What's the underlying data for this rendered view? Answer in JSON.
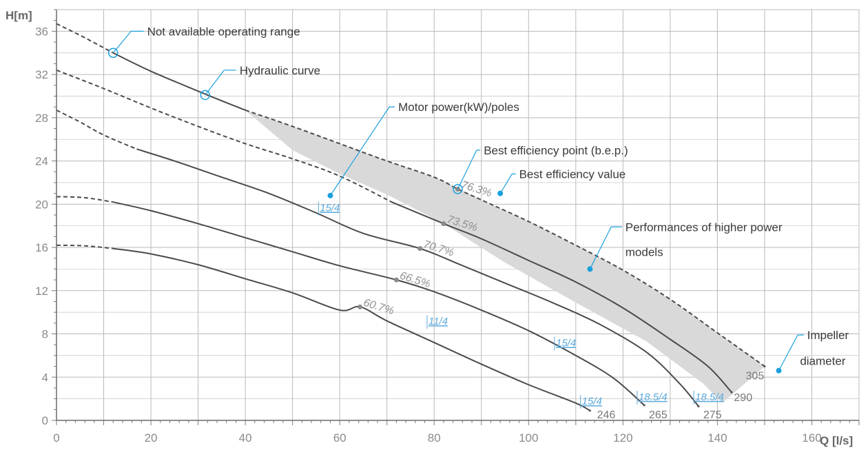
{
  "chart_data": {
    "type": "line",
    "xlabel": "Q [l/s]",
    "ylabel": "H[m]",
    "xlim": [
      0,
      170
    ],
    "ylim": [
      0,
      38
    ],
    "x_ticks": [
      0,
      20,
      40,
      60,
      80,
      100,
      120,
      140,
      160
    ],
    "y_ticks": [
      0,
      4,
      8,
      12,
      16,
      20,
      24,
      28,
      32,
      36
    ],
    "grid": true,
    "series": [
      {
        "name": "246",
        "solid_from_x": 12,
        "points": [
          [
            0,
            16.2
          ],
          [
            6,
            16.15
          ],
          [
            12,
            15.9
          ],
          [
            20,
            15.4
          ],
          [
            30,
            14.4
          ],
          [
            40,
            13.1
          ],
          [
            50,
            11.8
          ],
          [
            60,
            10.2
          ],
          [
            64.3,
            10.5
          ],
          [
            70,
            9.2
          ],
          [
            80,
            7.2
          ],
          [
            90,
            5.2
          ],
          [
            100,
            3.3
          ],
          [
            110,
            1.6
          ],
          [
            113,
            0.9
          ]
        ],
        "efficiency_point": {
          "x": 64.3,
          "y": 10.5,
          "label": "60.7%"
        },
        "motor_label": {
          "x": 111,
          "y": 1.2,
          "text": "15/4"
        },
        "motor_label_2": {
          "x": 78.5,
          "y": 8.6,
          "text": "11/4"
        }
      },
      {
        "name": "265",
        "solid_from_x": 12,
        "points": [
          [
            0,
            20.7
          ],
          [
            6,
            20.6
          ],
          [
            12,
            20.2
          ],
          [
            20,
            19.4
          ],
          [
            30,
            18.2
          ],
          [
            40,
            16.9
          ],
          [
            50,
            15.6
          ],
          [
            60,
            14.3
          ],
          [
            72,
            13.0
          ],
          [
            80,
            11.9
          ],
          [
            90,
            10.2
          ],
          [
            100,
            8.3
          ],
          [
            110,
            6.0
          ],
          [
            118,
            3.9
          ],
          [
            124.5,
            1.4
          ]
        ],
        "efficiency_point": {
          "x": 72,
          "y": 13.0,
          "label": "66.5%"
        },
        "motor_label": {
          "x": 123,
          "y": 1.6,
          "text": "18.5/4"
        },
        "motor_label_2": {
          "x": 105.5,
          "y": 6.6,
          "text": "15/4"
        }
      },
      {
        "name": "275",
        "solid_from_x": 17,
        "points": [
          [
            0,
            28.7
          ],
          [
            5,
            27.6
          ],
          [
            10,
            26.4
          ],
          [
            17,
            25.1
          ],
          [
            25,
            24.0
          ],
          [
            35,
            22.5
          ],
          [
            45,
            21.0
          ],
          [
            55,
            19.2
          ],
          [
            65,
            17.3
          ],
          [
            77,
            15.9
          ],
          [
            85,
            14.5
          ],
          [
            95,
            12.7
          ],
          [
            105,
            10.9
          ],
          [
            115,
            8.9
          ],
          [
            125,
            6.3
          ],
          [
            132,
            3.4
          ],
          [
            136,
            1.3
          ]
        ],
        "efficiency_point": {
          "x": 77,
          "y": 15.9,
          "label": "70.7%"
        },
        "motor_label": {
          "x": 135,
          "y": 1.6,
          "text": "18.5/4"
        },
        "motor_label_2": {
          "x": 55.5,
          "y": 19.1,
          "text": "15/4"
        }
      },
      {
        "name": "290",
        "solid_from_x": 71,
        "points": [
          [
            0,
            32.4
          ],
          [
            10,
            30.7
          ],
          [
            20,
            28.9
          ],
          [
            30,
            27.2
          ],
          [
            40,
            25.6
          ],
          [
            50,
            24.2
          ],
          [
            60,
            22.6
          ],
          [
            71,
            20.2
          ],
          [
            82,
            18.2
          ],
          [
            90,
            16.8
          ],
          [
            100,
            14.8
          ],
          [
            110,
            12.8
          ],
          [
            120,
            10.4
          ],
          [
            130,
            7.5
          ],
          [
            138,
            5.0
          ],
          [
            143,
            2.6
          ]
        ],
        "efficiency_point": {
          "x": 82,
          "y": 18.2,
          "label": "73.5%"
        }
      },
      {
        "name": "305",
        "solid_from_x": 12,
        "solid_to_x": 40,
        "points": [
          [
            0,
            36.7
          ],
          [
            6,
            35.4
          ],
          [
            12,
            34.0
          ],
          [
            20,
            32.3
          ],
          [
            32,
            30.1
          ],
          [
            40,
            28.7
          ],
          [
            50,
            27.2
          ],
          [
            60,
            25.6
          ],
          [
            70,
            24.0
          ],
          [
            80,
            22.5
          ],
          [
            85,
            21.4
          ],
          [
            90,
            20.4
          ],
          [
            100,
            18.4
          ],
          [
            110,
            16.2
          ],
          [
            120,
            13.9
          ],
          [
            130,
            11.2
          ],
          [
            140,
            8.1
          ],
          [
            150,
            5.0
          ]
        ],
        "efficiency_point": {
          "x": 85,
          "y": 21.4,
          "label": "76.3%"
        }
      }
    ],
    "shaded_region": {
      "name": "Performances of higher power models",
      "polygon": [
        [
          40,
          28.7
        ],
        [
          50,
          27.2
        ],
        [
          60,
          25.6
        ],
        [
          70,
          24.0
        ],
        [
          80,
          22.5
        ],
        [
          90,
          20.4
        ],
        [
          100,
          18.4
        ],
        [
          110,
          16.2
        ],
        [
          120,
          13.9
        ],
        [
          130,
          11.2
        ],
        [
          140,
          8.1
        ],
        [
          150,
          5.0
        ],
        [
          141,
          1.6
        ],
        [
          137,
          3.4
        ],
        [
          125,
          7.3
        ],
        [
          110,
          10.9
        ],
        [
          95,
          14.6
        ],
        [
          82,
          18.2
        ],
        [
          70,
          20.9
        ],
        [
          60,
          22.8
        ],
        [
          50,
          25.0
        ],
        [
          40,
          28.7
        ]
      ]
    },
    "annotations": [
      {
        "text": "Not available operating range",
        "point": [
          12,
          34.0
        ],
        "marker": "open-circle",
        "elbow": [
          15.8,
          36.0
        ],
        "text_at": [
          19.2,
          36.0
        ]
      },
      {
        "text": "Hydraulic curve",
        "point": [
          31.5,
          30.1
        ],
        "marker": "open-circle",
        "elbow": [
          35.5,
          32.4
        ],
        "text_at": [
          38.8,
          32.4
        ]
      },
      {
        "text": "Motor power(kW)/poles",
        "point": [
          58,
          20.8
        ],
        "marker": "dot",
        "elbow": [
          70.5,
          29.0
        ],
        "text_at": [
          72.4,
          29.0
        ]
      },
      {
        "text": "Best efficiency point (b.e.p.)",
        "point": [
          85,
          21.4
        ],
        "marker": "open-circle",
        "elbow": [
          89,
          25.0
        ],
        "text_at": [
          90.5,
          25.0
        ]
      },
      {
        "text": "Best efficiency value",
        "point": [
          94,
          21.0
        ],
        "marker": "dot",
        "elbow": [
          96.5,
          22.8
        ],
        "text_at": [
          98.0,
          22.8
        ]
      },
      {
        "text": "Performances of higher power models",
        "point": [
          113,
          14.0
        ],
        "marker": "dot",
        "elbow": [
          117.5,
          17.9
        ],
        "text_at": [
          120.5,
          17.9
        ],
        "line2": "models",
        "line2_at": [
          120.5,
          15.6
        ]
      },
      {
        "text": "Impeller diameter",
        "point": [
          153,
          4.6
        ],
        "marker": "dot",
        "elbow": [
          157,
          7.9
        ],
        "text_at": [
          159,
          7.9
        ],
        "line2": "diameter",
        "line2_at": [
          157.5,
          5.5
        ]
      }
    ],
    "diameter_labels": [
      {
        "text": "246",
        "at": [
          114.5,
          0.2
        ]
      },
      {
        "text": "265",
        "at": [
          125.5,
          0.2
        ]
      },
      {
        "text": "275",
        "at": [
          137,
          0.2
        ]
      },
      {
        "text": "290",
        "at": [
          143.5,
          1.8
        ]
      },
      {
        "text": "305",
        "at": [
          146,
          3.8
        ]
      }
    ],
    "colors": {
      "curve": "#4a4a4a",
      "shade": "#d9d9d9",
      "grid": "#b9b9b9",
      "accent": "#1aa0dc",
      "motor_label": "#5aa9dd"
    }
  }
}
